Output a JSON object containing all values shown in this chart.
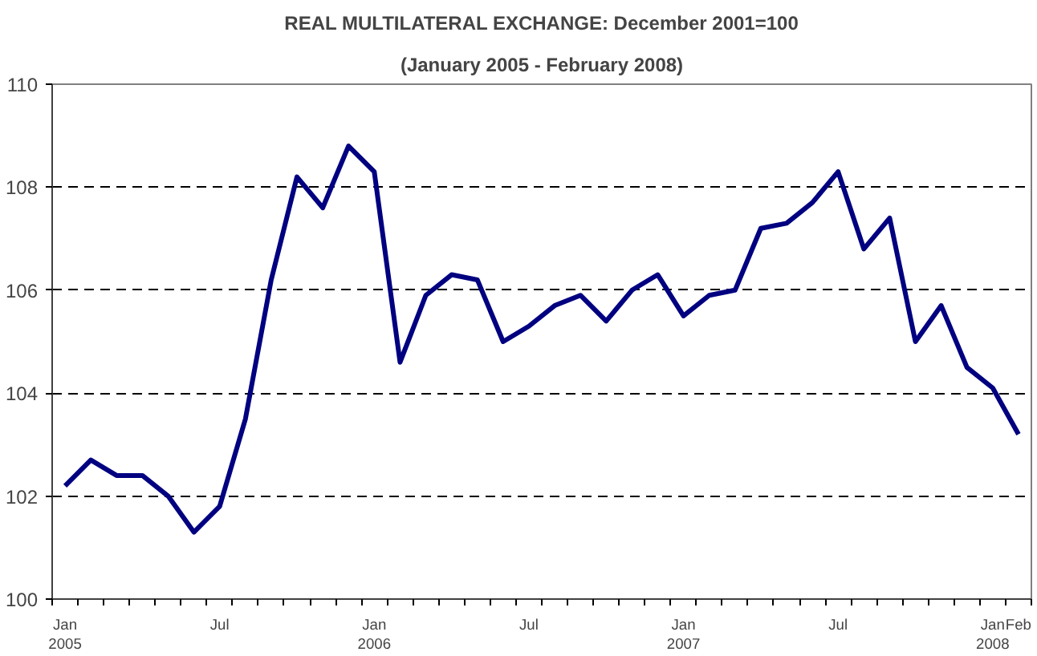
{
  "chart_data": {
    "type": "line",
    "title": "REAL MULTILATERAL EXCHANGE: December 2001=100",
    "subtitle": "(January 2005 - February 2008)",
    "categories": [
      "Jan\n2005",
      null,
      null,
      null,
      null,
      null,
      "Jul",
      null,
      null,
      null,
      null,
      null,
      "Jan\n2006",
      null,
      null,
      null,
      null,
      null,
      "Jul",
      null,
      null,
      null,
      null,
      null,
      "Jan\n2007",
      null,
      null,
      null,
      null,
      null,
      "Jul",
      null,
      null,
      null,
      null,
      null,
      "Jan\n2008",
      "Feb"
    ],
    "series": [
      {
        "color": "#000080",
        "values": [
          102.2,
          102.7,
          102.4,
          102.4,
          102.0,
          101.3,
          101.8,
          103.5,
          106.2,
          108.2,
          107.6,
          108.8,
          108.3,
          104.6,
          105.9,
          106.3,
          106.2,
          105.0,
          105.3,
          105.7,
          105.9,
          105.4,
          106.0,
          106.3,
          105.5,
          105.9,
          106.0,
          107.2,
          107.3,
          107.7,
          108.3,
          106.8,
          107.4,
          105.0,
          105.7,
          104.5,
          104.1,
          103.2
        ]
      }
    ],
    "ylim": [
      100,
      110
    ],
    "yticks": [
      100,
      102,
      104,
      106,
      108,
      110
    ],
    "grid": "y",
    "line_style": "solid",
    "marker": "none"
  }
}
